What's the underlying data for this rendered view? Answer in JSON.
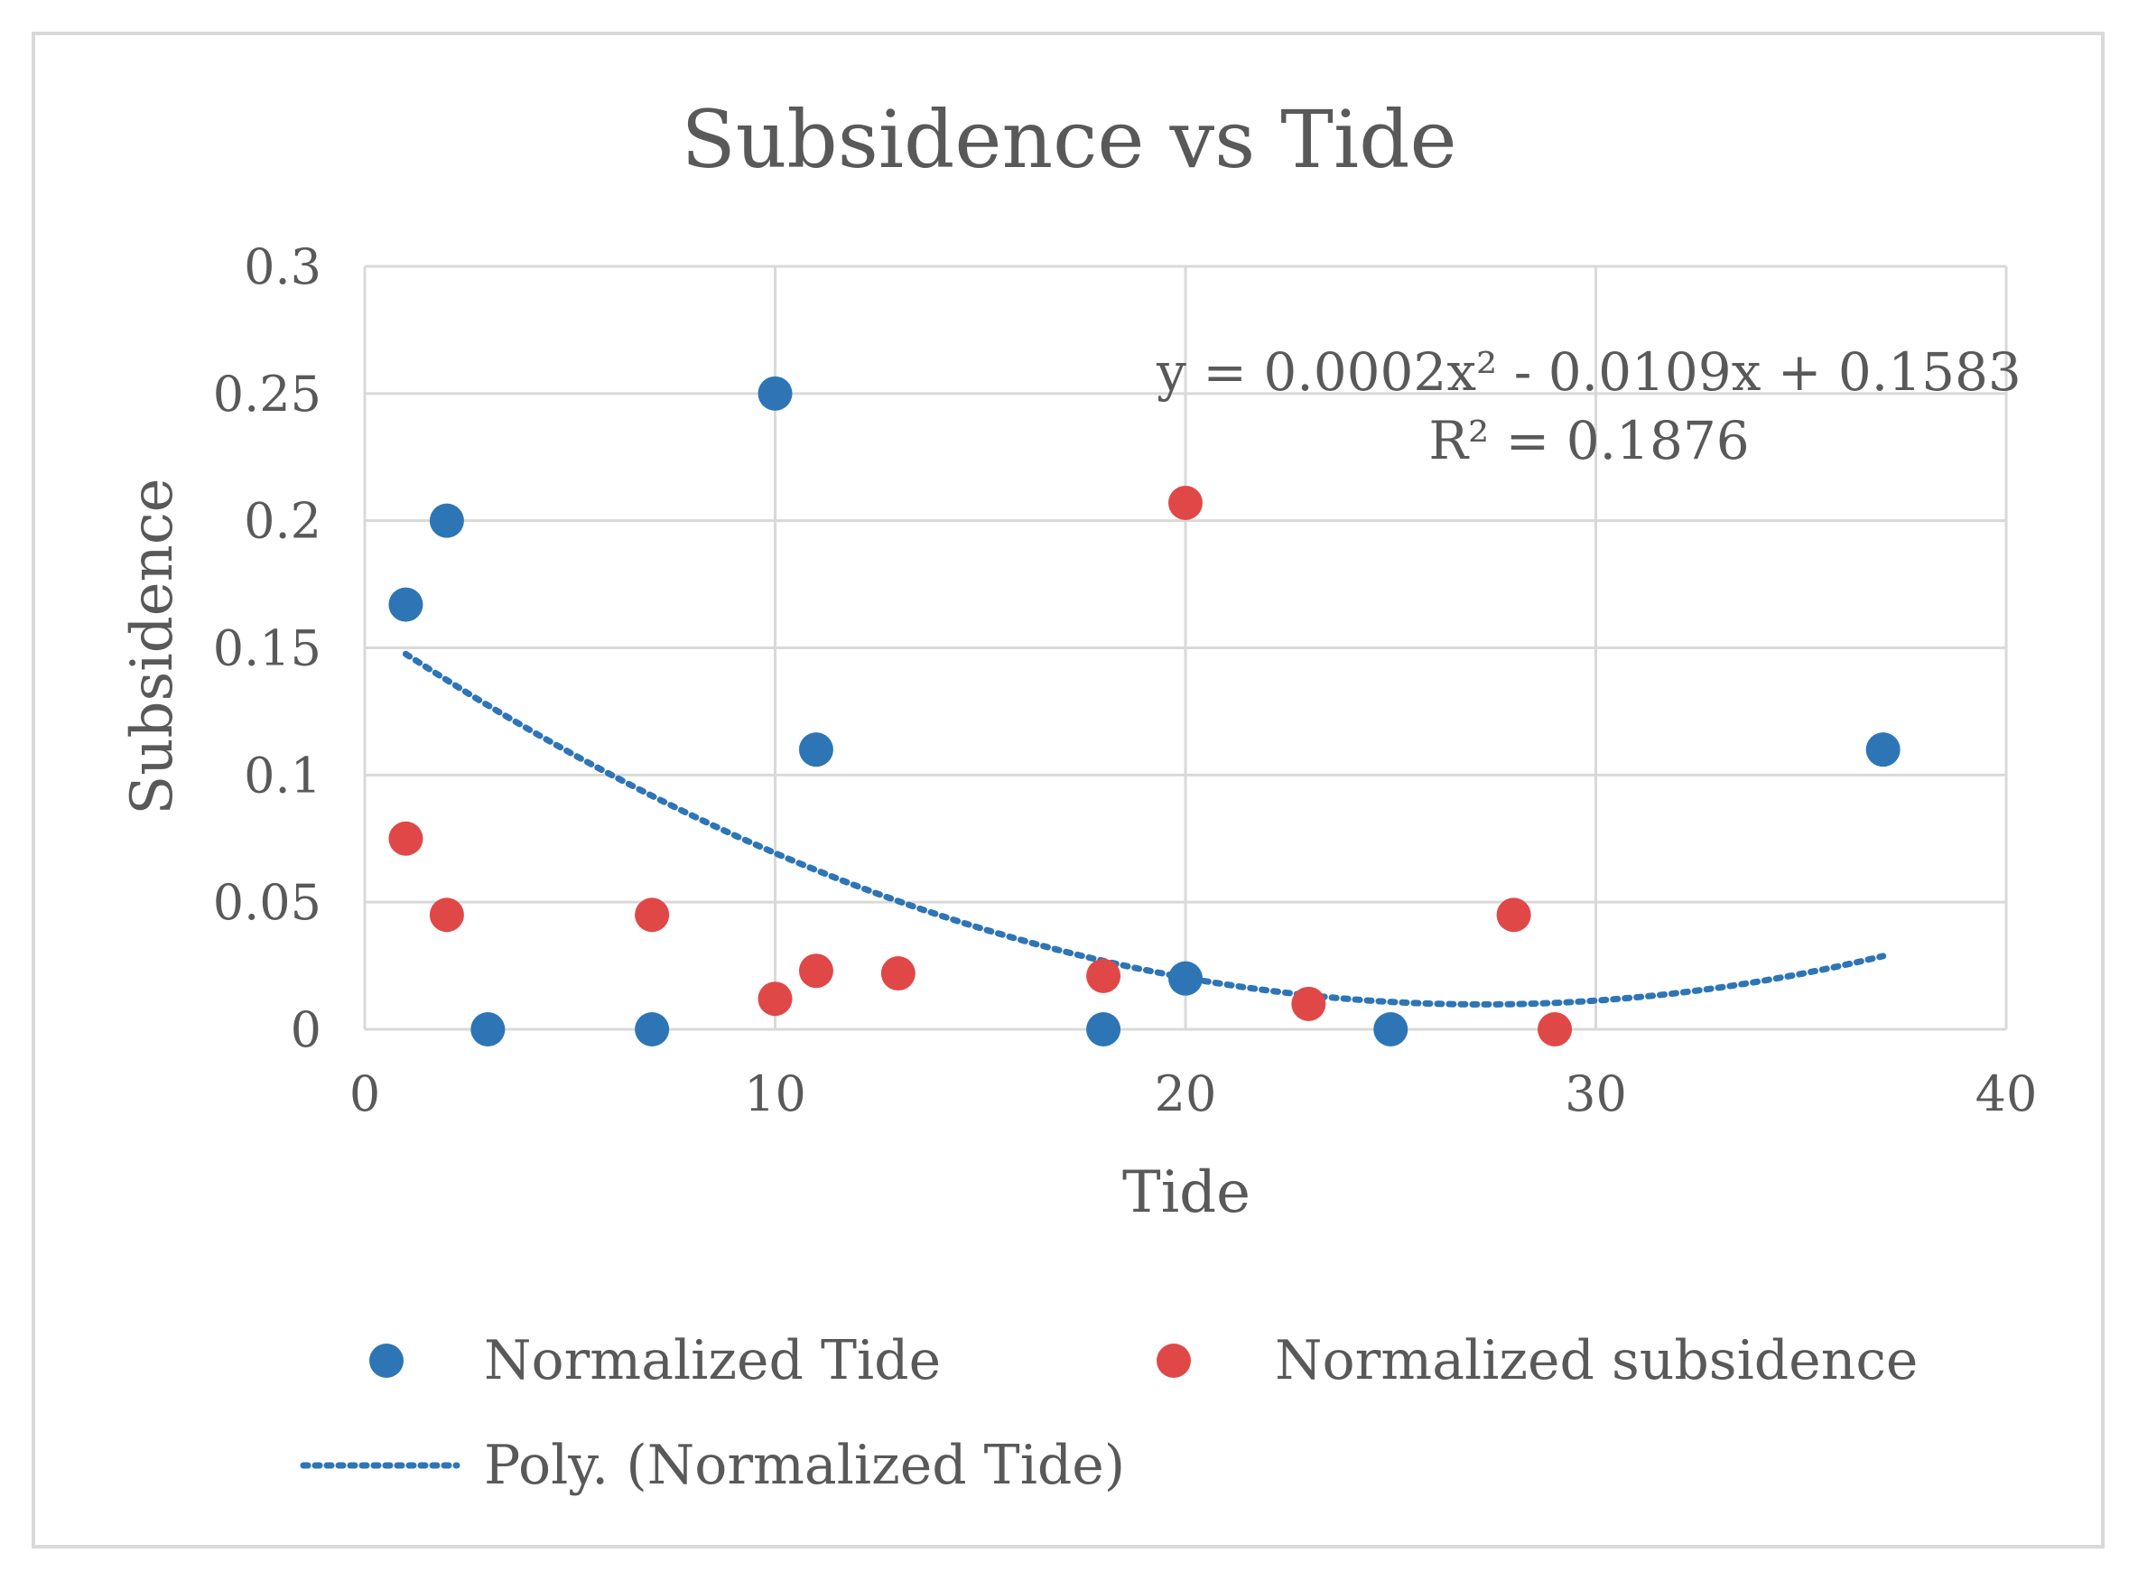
{
  "chart_data": {
    "type": "scatter",
    "title": "Subsidence vs Tide",
    "xlabel": "Tide",
    "ylabel": "Subsidence",
    "xlim": [
      0,
      40
    ],
    "ylim": [
      0,
      0.3
    ],
    "x_ticks": [
      0,
      10,
      20,
      30,
      40
    ],
    "y_ticks": [
      0,
      0.05,
      0.1,
      0.15,
      0.2,
      0.25,
      0.3
    ],
    "x_tick_labels": [
      "0",
      "10",
      "20",
      "30",
      "40"
    ],
    "y_tick_labels": [
      "0",
      "0.05",
      "0.1",
      "0.15",
      "0.2",
      "0.25",
      "0.3"
    ],
    "grid": true,
    "legend_position": "bottom",
    "series": [
      {
        "name": "Normalized Tide",
        "color": "#2e75b6",
        "points": [
          {
            "x": 1,
            "y": 0.167
          },
          {
            "x": 2,
            "y": 0.2
          },
          {
            "x": 3,
            "y": 0
          },
          {
            "x": 7,
            "y": 0
          },
          {
            "x": 10,
            "y": 0.25
          },
          {
            "x": 11,
            "y": 0.11
          },
          {
            "x": 18,
            "y": 0
          },
          {
            "x": 20,
            "y": 0.02
          },
          {
            "x": 25,
            "y": 0
          },
          {
            "x": 37,
            "y": 0.11
          }
        ]
      },
      {
        "name": "Normalized subsidence",
        "color": "#e04848",
        "points": [
          {
            "x": 1,
            "y": 0.075
          },
          {
            "x": 2,
            "y": 0.045
          },
          {
            "x": 7,
            "y": 0.045
          },
          {
            "x": 10,
            "y": 0.012
          },
          {
            "x": 11,
            "y": 0.023
          },
          {
            "x": 13,
            "y": 0.022
          },
          {
            "x": 18,
            "y": 0.021
          },
          {
            "x": 20,
            "y": 0.207
          },
          {
            "x": 23,
            "y": 0.01
          },
          {
            "x": 28,
            "y": 0.045
          },
          {
            "x": 29,
            "y": 0
          }
        ]
      }
    ],
    "trendline": {
      "name": "Poly. (Normalized Tide)",
      "color": "#2e75b6",
      "style": "dotted",
      "coefficients": {
        "a": 0.0002,
        "b": -0.0109,
        "c": 0.1583
      },
      "x_range": [
        1,
        37
      ],
      "equation_line1": "y = 0.0002x² - 0.0109x + 0.1583",
      "equation_line2": "R² = 0.1876"
    }
  }
}
